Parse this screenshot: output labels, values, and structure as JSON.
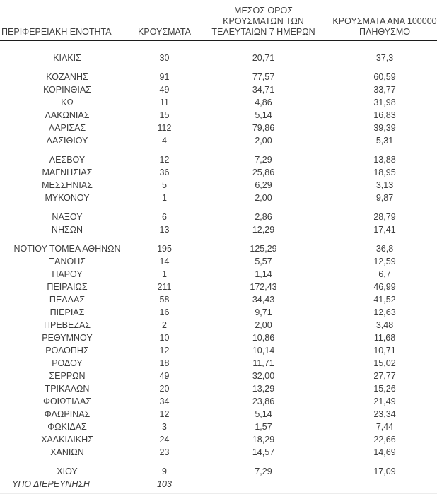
{
  "colors": {
    "text": "#3d3d3d",
    "header_rule": "#1c1c1c",
    "background": "#ffffff"
  },
  "table": {
    "headers": {
      "region": "ΠΕΡΙΦΕΡΕΙΑΚΗ ΕΝΟΤΗΤΑ",
      "cases": "ΚΡΟΥΣΜΑΤΑ",
      "avg7_lines": [
        "ΜΕΣΟΣ ΟΡΟΣ",
        "ΚΡΟΥΣΜΑΤΩΝ ΤΩΝ",
        "ΤΕΛΕΥΤΑΙΩΝ 7 ΗΜΕΡΩΝ"
      ],
      "per100k_lines": [
        "ΚΡΟΥΣΜΑΤΑ ΑΝΑ 100000",
        "ΠΛΗΘΥΣΜΟ"
      ]
    },
    "groups": [
      [
        {
          "region": "ΚΙΛΚΙΣ",
          "cases": "30",
          "avg7": "20,71",
          "per100k": "37,3"
        }
      ],
      [
        {
          "region": "ΚΟΖΑΝΗΣ",
          "cases": "91",
          "avg7": "77,57",
          "per100k": "60,59"
        },
        {
          "region": "ΚΟΡΙΝΘΙΑΣ",
          "cases": "49",
          "avg7": "34,71",
          "per100k": "33,77"
        },
        {
          "region": "ΚΩ",
          "cases": "11",
          "avg7": "4,86",
          "per100k": "31,98"
        },
        {
          "region": "ΛΑΚΩΝΙΑΣ",
          "cases": "15",
          "avg7": "5,14",
          "per100k": "16,83"
        },
        {
          "region": "ΛΑΡΙΣΑΣ",
          "cases": "112",
          "avg7": "79,86",
          "per100k": "39,39"
        },
        {
          "region": "ΛΑΣΙΘΙΟΥ",
          "cases": "4",
          "avg7": "2,00",
          "per100k": "5,31"
        }
      ],
      [
        {
          "region": "ΛΕΣΒΟΥ",
          "cases": "12",
          "avg7": "7,29",
          "per100k": "13,88"
        },
        {
          "region": "ΜΑΓΝΗΣΙΑΣ",
          "cases": "36",
          "avg7": "25,86",
          "per100k": "18,95"
        },
        {
          "region": "ΜΕΣΣΗΝΙΑΣ",
          "cases": "5",
          "avg7": "6,29",
          "per100k": "3,13"
        },
        {
          "region": "ΜΥΚΟΝΟΥ",
          "cases": "1",
          "avg7": "2,00",
          "per100k": "9,87"
        }
      ],
      [
        {
          "region": "ΝΑΞΟΥ",
          "cases": "6",
          "avg7": "2,86",
          "per100k": "28,79"
        },
        {
          "region": "ΝΗΣΩΝ",
          "cases": "13",
          "avg7": "12,29",
          "per100k": "17,41"
        }
      ],
      [
        {
          "region": "ΝΟΤΙΟΥ ΤΟΜΕΑ ΑΘΗΝΩΝ",
          "cases": "195",
          "avg7": "125,29",
          "per100k": "36,8"
        },
        {
          "region": "ΞΑΝΘΗΣ",
          "cases": "14",
          "avg7": "5,57",
          "per100k": "12,59"
        },
        {
          "region": "ΠΑΡΟΥ",
          "cases": "1",
          "avg7": "1,14",
          "per100k": "6,7"
        },
        {
          "region": "ΠΕΙΡΑΙΩΣ",
          "cases": "211",
          "avg7": "172,43",
          "per100k": "46,99"
        },
        {
          "region": "ΠΕΛΛΑΣ",
          "cases": "58",
          "avg7": "34,43",
          "per100k": "41,52"
        },
        {
          "region": "ΠΙΕΡΙΑΣ",
          "cases": "16",
          "avg7": "9,71",
          "per100k": "12,63"
        },
        {
          "region": "ΠΡΕΒΕΖΑΣ",
          "cases": "2",
          "avg7": "2,00",
          "per100k": "3,48"
        },
        {
          "region": "ΡΕΘΥΜΝΟΥ",
          "cases": "10",
          "avg7": "10,86",
          "per100k": "11,68"
        },
        {
          "region": "ΡΟΔΟΠΗΣ",
          "cases": "12",
          "avg7": "10,14",
          "per100k": "10,71"
        },
        {
          "region": "ΡΟΔΟΥ",
          "cases": "18",
          "avg7": "11,71",
          "per100k": "15,02"
        },
        {
          "region": "ΣΕΡΡΩΝ",
          "cases": "49",
          "avg7": "32,00",
          "per100k": "27,77"
        },
        {
          "region": "ΤΡΙΚΑΛΩΝ",
          "cases": "20",
          "avg7": "13,29",
          "per100k": "15,26"
        },
        {
          "region": "ΦΘΙΩΤΙΔΑΣ",
          "cases": "34",
          "avg7": "23,86",
          "per100k": "21,49"
        },
        {
          "region": "ΦΛΩΡΙΝΑΣ",
          "cases": "12",
          "avg7": "5,14",
          "per100k": "23,34"
        },
        {
          "region": "ΦΩΚΙΔΑΣ",
          "cases": "3",
          "avg7": "1,57",
          "per100k": "7,44"
        },
        {
          "region": "ΧΑΛΚΙΔΙΚΗΣ",
          "cases": "24",
          "avg7": "18,29",
          "per100k": "22,66"
        },
        {
          "region": "ΧΑΝΙΩΝ",
          "cases": "23",
          "avg7": "14,57",
          "per100k": "14,69"
        }
      ],
      [
        {
          "region": "ΧΙΟΥ",
          "cases": "9",
          "avg7": "7,29",
          "per100k": "17,09"
        },
        {
          "region": "ΥΠΟ ΔΙΕΡΕΥΝΗΣΗ",
          "cases": "103",
          "avg7": "",
          "per100k": "",
          "italic": true,
          "region_align": "left"
        }
      ]
    ]
  }
}
